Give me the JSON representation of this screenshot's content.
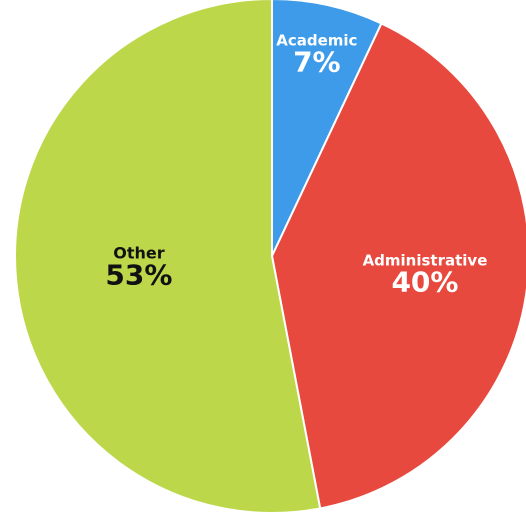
{
  "chart_data": {
    "type": "pie",
    "title": "",
    "slices": [
      {
        "label": "Academic",
        "value": 7,
        "value_label": "7%",
        "color": "#3d9be9",
        "text_color": "#ffffff"
      },
      {
        "label": "Administrative",
        "value": 40,
        "value_label": "40%",
        "color": "#e8493e",
        "text_color": "#ffffff"
      },
      {
        "label": "Other",
        "value": 53,
        "value_label": "53%",
        "color": "#bcd84a",
        "text_color": "#111111"
      }
    ],
    "start_angle": "12 o'clock",
    "direction": "clockwise",
    "legend": "none"
  }
}
